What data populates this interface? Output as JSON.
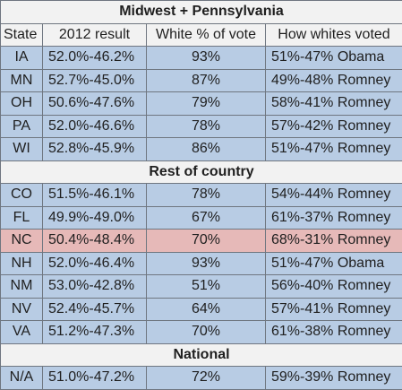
{
  "sections": [
    {
      "title": "Midwest + Pennsylvania",
      "rows": [
        {
          "state": "IA",
          "result": "52.0%-46.2%",
          "white": "93%",
          "how": "51%-47% Obama"
        },
        {
          "state": "MN",
          "result": "52.7%-45.0%",
          "white": "87%",
          "how": "49%-48% Romney"
        },
        {
          "state": "OH",
          "result": "50.6%-47.6%",
          "white": "79%",
          "how": "58%-41% Romney"
        },
        {
          "state": "PA",
          "result": "52.0%-46.6%",
          "white": "78%",
          "how": "57%-42% Romney"
        },
        {
          "state": "WI",
          "result": "52.8%-45.9%",
          "white": "86%",
          "how": "51%-47% Romney"
        }
      ]
    },
    {
      "title": "Rest of country",
      "rows": [
        {
          "state": "CO",
          "result": "51.5%-46.1%",
          "white": "78%",
          "how": "54%-44% Romney"
        },
        {
          "state": "FL",
          "result": "49.9%-49.0%",
          "white": "67%",
          "how": "61%-37% Romney"
        },
        {
          "state": "NC",
          "result": "50.4%-48.4%",
          "white": "70%",
          "how": "68%-31% Romney",
          "highlight": true
        },
        {
          "state": "NH",
          "result": "52.0%-46.4%",
          "white": "93%",
          "how": "51%-47% Obama"
        },
        {
          "state": "NM",
          "result": "53.0%-42.8%",
          "white": "51%",
          "how": "56%-40% Romney"
        },
        {
          "state": "NV",
          "result": "52.4%-45.7%",
          "white": "64%",
          "how": "57%-41% Romney"
        },
        {
          "state": "VA",
          "result": "51.2%-47.3%",
          "white": "70%",
          "how": "61%-38% Romney"
        }
      ]
    },
    {
      "title": "National",
      "rows": [
        {
          "state": "N/A",
          "result": "51.0%-47.2%",
          "white": "72%",
          "how": "59%-39% Romney"
        }
      ]
    }
  ],
  "columns": {
    "state": "State",
    "result": "2012 result",
    "white": "White % of vote",
    "how": "How whites voted"
  },
  "colors": {
    "row": "#b8cce4",
    "highlight": "#e6b9b8",
    "header": "#f2f2f2",
    "border": "#6f7680"
  }
}
